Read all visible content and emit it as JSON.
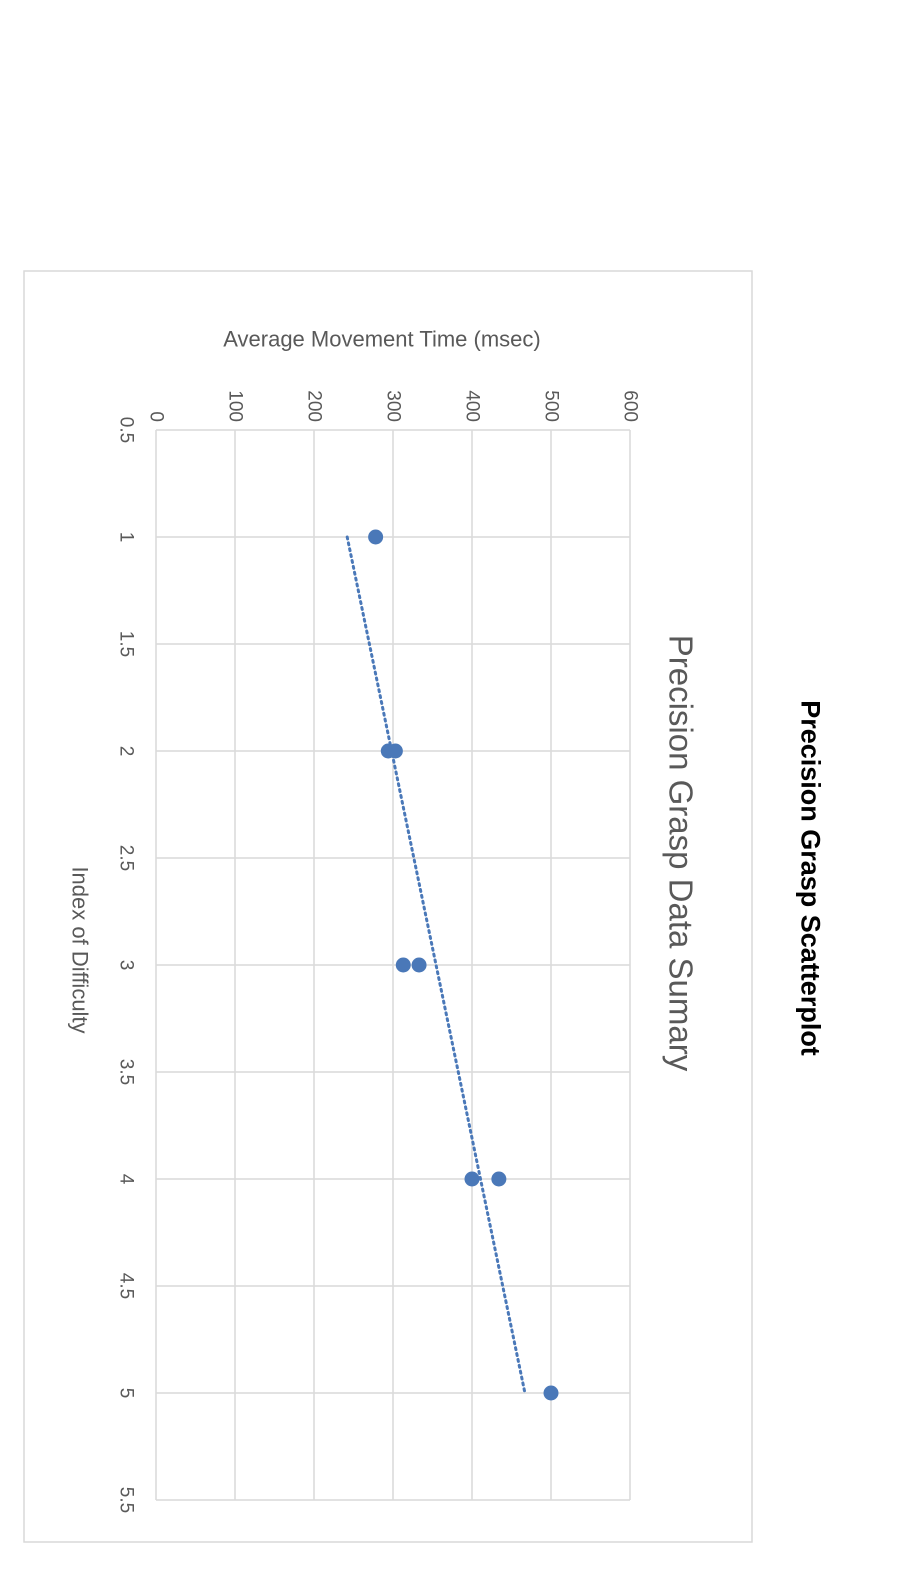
{
  "page": {
    "heading": "Precision Grasp Scatterplot"
  },
  "chart_data": {
    "type": "scatter",
    "title": "Precision Grasp Data Sumary",
    "xlabel": "Index of Difficulty",
    "ylabel": "Average Movement Time (msec)",
    "xlim": [
      0.5,
      5.5
    ],
    "ylim": [
      0,
      600
    ],
    "x_ticks": [
      "0.5",
      "1",
      "1.5",
      "2",
      "2.5",
      "3",
      "3.5",
      "4",
      "4.5",
      "5",
      "5.5"
    ],
    "y_ticks": [
      "0",
      "100",
      "200",
      "300",
      "400",
      "500",
      "600"
    ],
    "grid": true,
    "orientation": "rotated-90-clockwise",
    "points": [
      {
        "x": 1,
        "y": 278
      },
      {
        "x": 2,
        "y": 294
      },
      {
        "x": 2,
        "y": 303
      },
      {
        "x": 3,
        "y": 313
      },
      {
        "x": 3,
        "y": 333
      },
      {
        "x": 4,
        "y": 400
      },
      {
        "x": 4,
        "y": 434
      },
      {
        "x": 5,
        "y": 500
      }
    ],
    "trendline": {
      "style": "dotted",
      "x": [
        1,
        5
      ],
      "y": [
        242,
        467
      ]
    },
    "marker_color": "#4a78b8",
    "trendline_color": "#4a78b8",
    "gridline_color": "#d9d9d9",
    "border_color": "#d9d9d9"
  }
}
